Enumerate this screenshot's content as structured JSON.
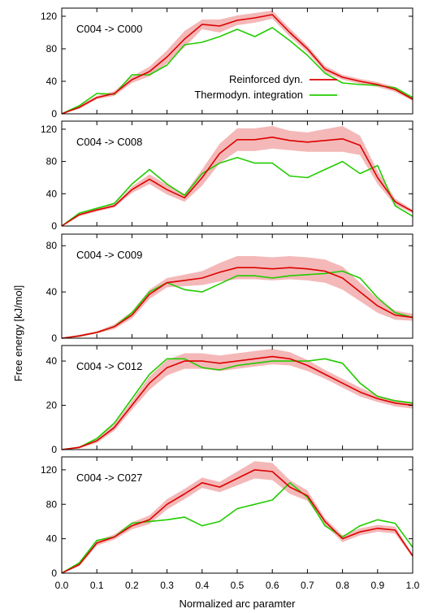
{
  "figure": {
    "ylabel": "Free energy [kJ/mol]",
    "xlabel": "Normalized arc paramter"
  },
  "legend": {
    "entries": [
      {
        "label": "Reinforced dyn.",
        "color": "#dd0000"
      },
      {
        "label": "Thermodyn. integration",
        "color": "#22cc00"
      }
    ],
    "placement": "inside first panel, center"
  },
  "colors": {
    "reinforced": "#dd0000",
    "thermodynamic": "#22cc00",
    "band": "#f4b8b8"
  },
  "chart_data": [
    {
      "type": "line",
      "title": "C004 -> C000",
      "ylim": [
        0,
        130
      ],
      "yticks": [
        "0",
        "40",
        "80",
        "120"
      ],
      "x": [
        0,
        0.05,
        0.1,
        0.15,
        0.2,
        0.25,
        0.3,
        0.35,
        0.4,
        0.45,
        0.5,
        0.55,
        0.6,
        0.65,
        0.7,
        0.75,
        0.8,
        0.85,
        0.9,
        0.95,
        1.0
      ],
      "series": [
        {
          "name": "Reinforced dyn.",
          "values": [
            0,
            8,
            20,
            25,
            42,
            52,
            70,
            92,
            110,
            108,
            115,
            118,
            122,
            100,
            80,
            55,
            45,
            40,
            36,
            30,
            18
          ],
          "err": [
            0,
            2,
            2,
            3,
            4,
            6,
            8,
            10,
            6,
            8,
            6,
            6,
            5,
            5,
            4,
            4,
            3,
            3,
            3,
            3,
            2
          ]
        },
        {
          "name": "Thermodyn. integration",
          "values": [
            0,
            10,
            25,
            24,
            48,
            48,
            60,
            85,
            88,
            95,
            104,
            95,
            106,
            90,
            72,
            50,
            38,
            36,
            35,
            32,
            20
          ]
        }
      ]
    },
    {
      "type": "line",
      "title": "C004 -> C008",
      "ylim": [
        0,
        130
      ],
      "yticks": [
        "0",
        "40",
        "80",
        "120"
      ],
      "x": [
        0,
        0.05,
        0.1,
        0.15,
        0.2,
        0.25,
        0.3,
        0.35,
        0.4,
        0.45,
        0.5,
        0.55,
        0.6,
        0.65,
        0.7,
        0.75,
        0.8,
        0.85,
        0.9,
        0.95,
        1.0
      ],
      "series": [
        {
          "name": "Reinforced dyn.",
          "values": [
            0,
            14,
            20,
            25,
            45,
            58,
            45,
            35,
            60,
            90,
            107,
            107,
            110,
            106,
            104,
            106,
            108,
            100,
            60,
            30,
            18
          ],
          "err": [
            0,
            2,
            2,
            2,
            4,
            6,
            6,
            5,
            10,
            12,
            14,
            14,
            14,
            12,
            12,
            14,
            16,
            12,
            8,
            4,
            2
          ]
        },
        {
          "name": "Thermodyn. integration",
          "values": [
            0,
            16,
            22,
            28,
            52,
            70,
            52,
            38,
            65,
            78,
            85,
            78,
            78,
            62,
            60,
            70,
            80,
            65,
            75,
            25,
            12
          ]
        }
      ]
    },
    {
      "type": "line",
      "title": "C004 -> C009",
      "ylim": [
        0,
        90
      ],
      "yticks": [
        "0",
        "40",
        "80"
      ],
      "x": [
        0,
        0.05,
        0.1,
        0.15,
        0.2,
        0.25,
        0.3,
        0.35,
        0.4,
        0.45,
        0.5,
        0.55,
        0.6,
        0.65,
        0.7,
        0.75,
        0.8,
        0.85,
        0.9,
        0.95,
        1.0
      ],
      "series": [
        {
          "name": "Reinforced dyn.",
          "values": [
            0,
            2,
            5,
            10,
            20,
            38,
            48,
            50,
            52,
            57,
            61,
            61,
            60,
            61,
            60,
            58,
            52,
            40,
            28,
            20,
            18
          ],
          "err": [
            0,
            1,
            1,
            2,
            3,
            4,
            4,
            5,
            6,
            8,
            10,
            10,
            10,
            10,
            10,
            10,
            10,
            8,
            6,
            4,
            3
          ]
        },
        {
          "name": "Thermodyn. integration",
          "values": [
            0,
            2,
            5,
            10,
            22,
            40,
            48,
            42,
            40,
            47,
            54,
            54,
            52,
            54,
            55,
            56,
            58,
            52,
            35,
            22,
            18
          ]
        }
      ]
    },
    {
      "type": "line",
      "title": "C004 -> C012",
      "ylim": [
        0,
        47
      ],
      "yticks": [
        "0",
        "20",
        "40"
      ],
      "x": [
        0,
        0.05,
        0.1,
        0.15,
        0.2,
        0.25,
        0.3,
        0.35,
        0.4,
        0.45,
        0.5,
        0.55,
        0.6,
        0.65,
        0.7,
        0.75,
        0.8,
        0.85,
        0.9,
        0.95,
        1.0
      ],
      "series": [
        {
          "name": "Reinforced dyn.",
          "values": [
            0,
            1,
            4,
            10,
            20,
            30,
            37,
            40,
            40,
            39,
            40,
            41,
            42,
            41,
            38,
            34,
            30,
            26,
            23,
            21,
            20
          ],
          "err": [
            0,
            0.5,
            1,
            1.5,
            2,
            3,
            3.5,
            3.5,
            3.5,
            3.5,
            3.5,
            3.5,
            3.5,
            3,
            2.5,
            2,
            2,
            2,
            1.5,
            1.5,
            1.5
          ]
        },
        {
          "name": "Thermodyn. integration",
          "values": [
            0,
            1,
            5,
            12,
            23,
            34,
            41,
            41,
            37,
            36,
            38,
            39,
            40,
            40,
            40,
            41,
            39,
            30,
            24,
            22,
            21
          ]
        }
      ]
    },
    {
      "type": "line",
      "title": "C004 -> C027",
      "ylim": [
        0,
        135
      ],
      "yticks": [
        "0",
        "40",
        "80",
        "120"
      ],
      "x": [
        0,
        0.05,
        0.1,
        0.15,
        0.2,
        0.25,
        0.3,
        0.35,
        0.4,
        0.45,
        0.5,
        0.55,
        0.6,
        0.65,
        0.7,
        0.75,
        0.8,
        0.85,
        0.9,
        0.95,
        1.0
      ],
      "series": [
        {
          "name": "Reinforced dyn.",
          "values": [
            0,
            10,
            35,
            42,
            55,
            62,
            80,
            92,
            105,
            100,
            110,
            120,
            118,
            100,
            90,
            60,
            40,
            48,
            52,
            50,
            20
          ],
          "err": [
            0,
            2,
            3,
            3,
            4,
            5,
            6,
            6,
            6,
            6,
            8,
            10,
            10,
            8,
            6,
            4,
            4,
            4,
            4,
            4,
            2
          ]
        },
        {
          "name": "Thermodyn. integration",
          "values": [
            0,
            12,
            38,
            42,
            58,
            60,
            62,
            65,
            55,
            60,
            75,
            80,
            85,
            105,
            88,
            55,
            42,
            55,
            62,
            58,
            30
          ]
        }
      ]
    }
  ],
  "xaxis": {
    "xlim": [
      0,
      1
    ],
    "ticks": [
      "0.0",
      "0.1",
      "0.2",
      "0.3",
      "0.4",
      "0.5",
      "0.6",
      "0.7",
      "0.8",
      "0.9",
      "1.0"
    ]
  }
}
